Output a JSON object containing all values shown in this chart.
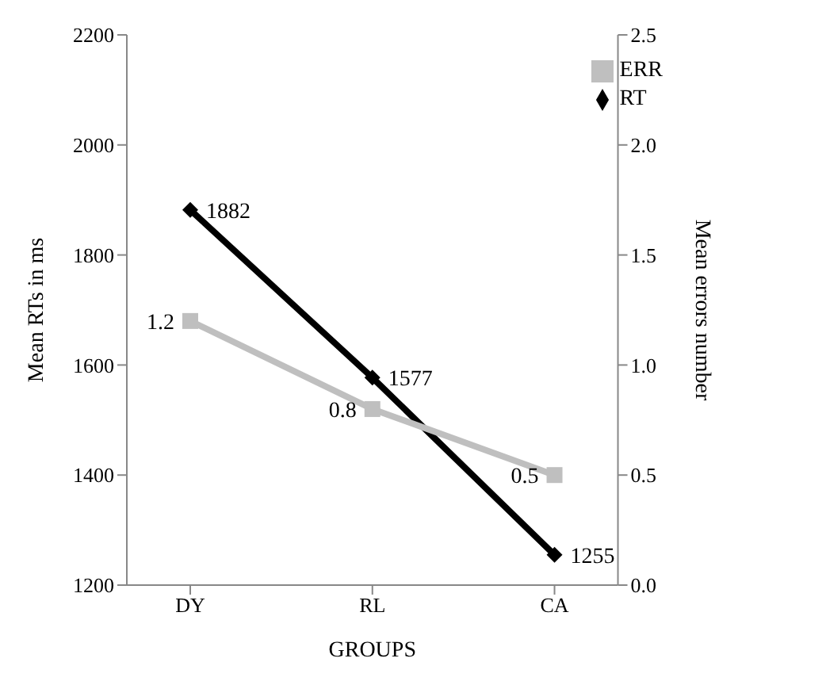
{
  "chart_data": {
    "type": "line",
    "xlabel": "GROUPS",
    "ylabel": "Mean RTs in ms",
    "y2label": "Mean errors number",
    "categories": [
      "DY",
      "RL",
      "CA"
    ],
    "series": [
      {
        "name": "RT",
        "color": "#000000",
        "values": [
          1882,
          1577,
          1255
        ],
        "marker": "diamond"
      },
      {
        "name": "ERR",
        "color": "#bfbfbf",
        "values": [
          1.2,
          0.8,
          0.5
        ],
        "axis": "y2",
        "marker": "square"
      }
    ],
    "ylim": [
      1200,
      2200
    ],
    "yticks": [
      1200,
      1400,
      1600,
      1800,
      2000,
      2200
    ],
    "y2lim": [
      0,
      2.5
    ],
    "y2ticks": [
      {
        "value": 0,
        "label": "0.0"
      },
      {
        "value": 0.5,
        "label": "0.5"
      },
      {
        "value": 1,
        "label": "1.0"
      },
      {
        "value": 1.5,
        "label": "1.5"
      },
      {
        "value": 2,
        "label": "2.0"
      },
      {
        "value": 2.5,
        "label": "2.5"
      }
    ],
    "data_labels": true,
    "legend": "top right",
    "grid": false,
    "line_style": "solid"
  }
}
